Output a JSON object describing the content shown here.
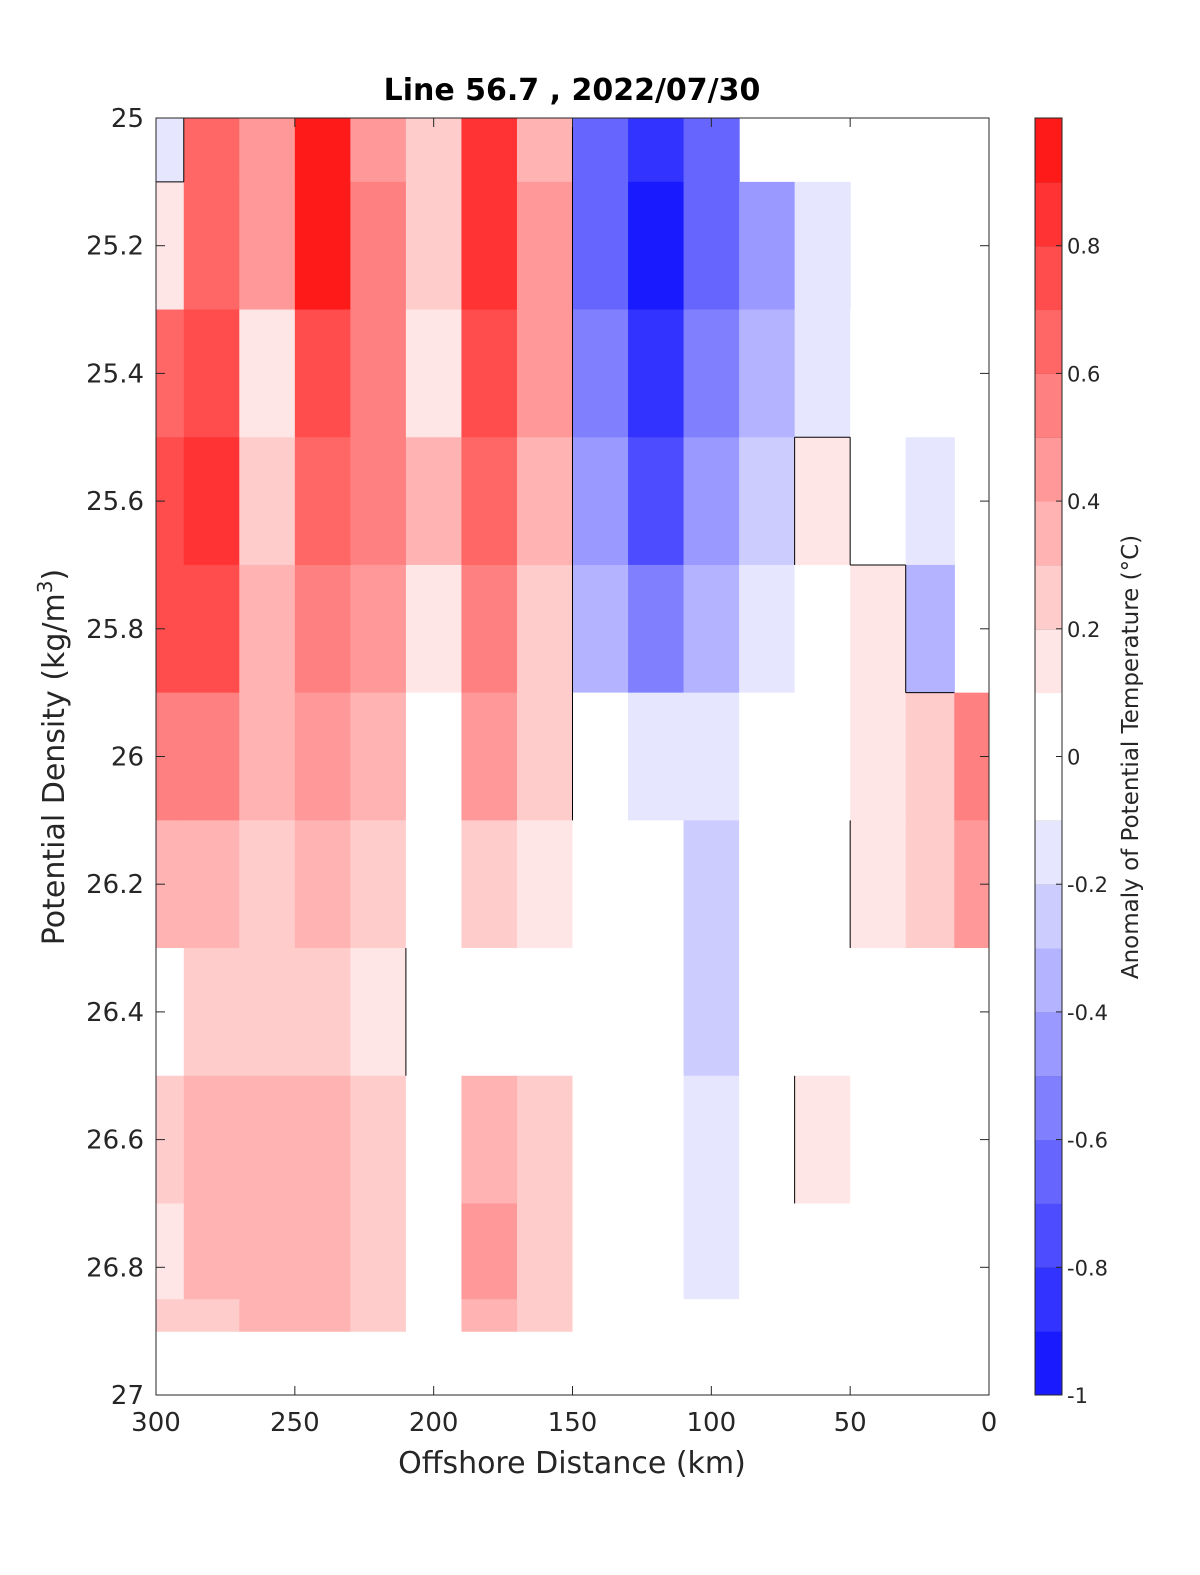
{
  "chart_data": {
    "type": "heatmap",
    "title": "Line 56.7 , 2022/07/30",
    "xlabel": "Offshore Distance (km)",
    "ylabel_main": "Potential Density (kg/m",
    "ylabel_sup": "3",
    "ylabel_close": ")",
    "colorbar_label": "Anomaly of Potential Temperature (°C)",
    "xlim": [
      300,
      0
    ],
    "ylim": [
      25,
      27
    ],
    "x_reversed": true,
    "y_reversed": true,
    "x_ticks": [
      300,
      250,
      200,
      150,
      100,
      50,
      0
    ],
    "x_tick_labels": [
      "300",
      "250",
      "200",
      "150",
      "100",
      "50",
      "0"
    ],
    "y_ticks": [
      25,
      25.2,
      25.4,
      25.6,
      25.8,
      26,
      26.2,
      26.4,
      26.6,
      26.8,
      27
    ],
    "y_tick_labels": [
      "25",
      "25.2",
      "25.4",
      "25.6",
      "25.8",
      "26",
      "26.2",
      "26.4",
      "26.6",
      "26.8",
      "27"
    ],
    "colorbar_ticks": [
      0.8,
      0.6,
      0.4,
      0.2,
      0,
      -0.2,
      -0.4,
      -0.6,
      -0.8,
      -1
    ],
    "colorbar_tick_labels": [
      "0.8",
      "0.6",
      "0.4",
      "0.2",
      "0",
      "-0.2",
      "-0.4",
      "-0.6",
      "-0.8",
      "-1"
    ],
    "colorbar_levels": [
      -1,
      -0.9,
      -0.8,
      -0.7,
      -0.6,
      -0.5,
      -0.4,
      -0.3,
      -0.2,
      -0.1,
      0.1,
      0.2,
      0.3,
      0.4,
      0.5,
      0.6,
      0.7,
      0.8,
      0.9,
      1.0
    ],
    "colorbar_colors": [
      "#0000ff",
      "#1a1aff",
      "#3333ff",
      "#4d4dff",
      "#6666ff",
      "#8080ff",
      "#9999ff",
      "#b3b3ff",
      "#ccccff",
      "#e6e6ff",
      "#ffffff",
      "#ffe6e6",
      "#ffcccc",
      "#ffb3b3",
      "#ff9999",
      "#ff8080",
      "#ff6666",
      "#ff4d4d",
      "#ff3333",
      "#ff1a1a",
      "#ff0000"
    ],
    "colormap": "blue-white-red diverging",
    "zero_contour_color": "#000000",
    "grid": false,
    "x": [
      300,
      280,
      260,
      240,
      220,
      200,
      180,
      160,
      140,
      120,
      100,
      80,
      60,
      40,
      20,
      5
    ],
    "y": [
      25.0,
      25.2,
      25.4,
      25.6,
      25.8,
      26.0,
      26.2,
      26.4,
      26.6,
      26.8,
      26.9
    ],
    "z": [
      [
        -0.2,
        0.6,
        0.4,
        0.9,
        0.4,
        0.2,
        0.8,
        0.3,
        -0.7,
        -0.9,
        -0.7,
        null,
        null,
        null,
        null,
        null
      ],
      [
        0.1,
        0.6,
        0.4,
        0.9,
        0.5,
        0.2,
        0.8,
        0.4,
        -0.7,
        -1.0,
        -0.7,
        -0.5,
        -0.2,
        null,
        null,
        null
      ],
      [
        0.6,
        0.7,
        0.1,
        0.7,
        0.5,
        0.1,
        0.7,
        0.4,
        -0.6,
        -0.9,
        -0.6,
        -0.4,
        -0.2,
        -0.1,
        null,
        null
      ],
      [
        0.7,
        0.8,
        0.2,
        0.6,
        0.5,
        0.3,
        0.6,
        0.3,
        -0.5,
        -0.8,
        -0.5,
        -0.3,
        0.1,
        -0.1,
        -0.2,
        null
      ],
      [
        0.7,
        0.7,
        0.3,
        0.5,
        0.4,
        0.1,
        0.5,
        0.2,
        -0.4,
        -0.6,
        -0.4,
        -0.2,
        0.0,
        0.1,
        -0.4,
        null
      ],
      [
        0.5,
        0.5,
        0.3,
        0.4,
        0.3,
        0.0,
        0.4,
        0.2,
        -0.1,
        -0.2,
        -0.2,
        -0.1,
        0.0,
        0.1,
        0.2,
        0.5
      ],
      [
        0.3,
        0.3,
        0.2,
        0.3,
        0.2,
        0.0,
        0.2,
        0.1,
        0.0,
        -0.1,
        -0.3,
        -0.1,
        -0.1,
        0.1,
        0.2,
        0.4
      ],
      [
        0.0,
        0.2,
        0.2,
        0.2,
        0.1,
        -0.1,
        0.0,
        0.0,
        0.0,
        -0.1,
        -0.3,
        -0.1,
        0.0,
        0.0,
        0.0,
        0.0
      ],
      [
        0.2,
        0.3,
        0.3,
        0.3,
        0.2,
        0.0,
        0.3,
        0.2,
        0.0,
        -0.1,
        -0.2,
        -0.1,
        0.1,
        0.0,
        0.0,
        0.0
      ],
      [
        0.1,
        0.3,
        0.3,
        0.3,
        0.2,
        0.0,
        0.4,
        0.2,
        0.0,
        -0.1,
        -0.2,
        0.0,
        0.0,
        0.0,
        0.0,
        0.0
      ],
      [
        0.2,
        0.2,
        0.3,
        0.3,
        0.2,
        0.0,
        0.3,
        0.2,
        0.0,
        0.0,
        -0.1,
        0.0,
        0.0,
        0.0,
        0.0,
        0.0
      ]
    ]
  }
}
